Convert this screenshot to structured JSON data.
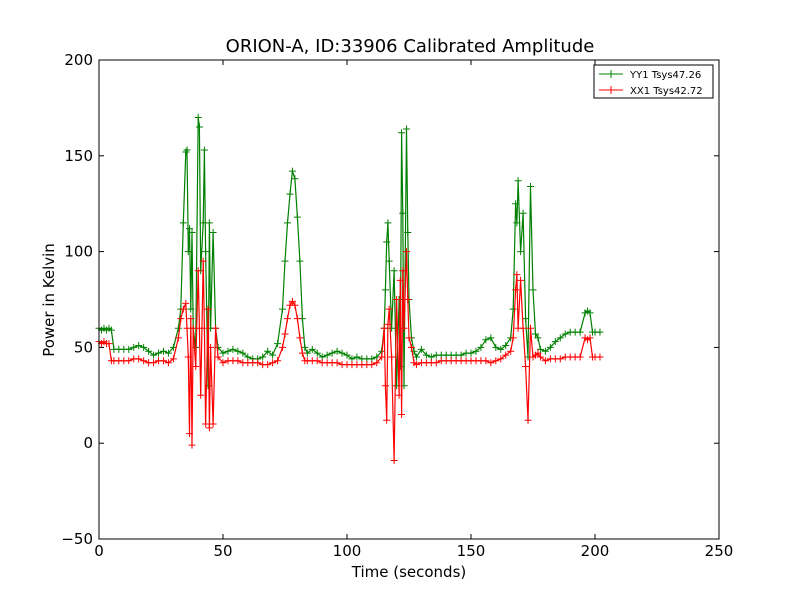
{
  "chart_data": {
    "type": "line",
    "title": "ORION-A, ID:33906 Calibrated Amplitude",
    "xlabel": "Time (seconds)",
    "ylabel": "Power in Kelvin",
    "xlim": [
      0,
      250
    ],
    "ylim": [
      -50,
      200
    ],
    "xticks": [
      0,
      50,
      100,
      150,
      200,
      250
    ],
    "yticks": [
      -50,
      0,
      50,
      100,
      150,
      200
    ],
    "grid": false,
    "legend_position": "top-right",
    "marker": "plus",
    "series": [
      {
        "name": "YY1 Tsys47.26",
        "color": "#008000",
        "points": [
          [
            0,
            60
          ],
          [
            1,
            59
          ],
          [
            2,
            60
          ],
          [
            3,
            59
          ],
          [
            4,
            60
          ],
          [
            5,
            59
          ],
          [
            6,
            49
          ],
          [
            8,
            49
          ],
          [
            10,
            49
          ],
          [
            12,
            49
          ],
          [
            14,
            50
          ],
          [
            16,
            51
          ],
          [
            18,
            50
          ],
          [
            20,
            48
          ],
          [
            22,
            46
          ],
          [
            24,
            47
          ],
          [
            26,
            48
          ],
          [
            28,
            47
          ],
          [
            30,
            50
          ],
          [
            32,
            60
          ],
          [
            33,
            70
          ],
          [
            34,
            115
          ],
          [
            35,
            152
          ],
          [
            35.5,
            153
          ],
          [
            36,
            100
          ],
          [
            36.5,
            112
          ],
          [
            37,
            70
          ],
          [
            37.5,
            110
          ],
          [
            38,
            60
          ],
          [
            39,
            50
          ],
          [
            40,
            170
          ],
          [
            40.5,
            165
          ],
          [
            41,
            90
          ],
          [
            42,
            115
          ],
          [
            42.5,
            153
          ],
          [
            43,
            100
          ],
          [
            44,
            30
          ],
          [
            44.5,
            115
          ],
          [
            45,
            60
          ],
          [
            46,
            110
          ],
          [
            47,
            60
          ],
          [
            48,
            50
          ],
          [
            50,
            47
          ],
          [
            52,
            48
          ],
          [
            54,
            49
          ],
          [
            56,
            48
          ],
          [
            58,
            47
          ],
          [
            60,
            45
          ],
          [
            62,
            44
          ],
          [
            64,
            44
          ],
          [
            66,
            45
          ],
          [
            68,
            48
          ],
          [
            70,
            46
          ],
          [
            72,
            52
          ],
          [
            74,
            70
          ],
          [
            75,
            95
          ],
          [
            76,
            115
          ],
          [
            77,
            130
          ],
          [
            78,
            142
          ],
          [
            79,
            138
          ],
          [
            80,
            118
          ],
          [
            81,
            95
          ],
          [
            82,
            65
          ],
          [
            83,
            50
          ],
          [
            84,
            47
          ],
          [
            86,
            49
          ],
          [
            88,
            47
          ],
          [
            90,
            45
          ],
          [
            92,
            46
          ],
          [
            94,
            47
          ],
          [
            96,
            48
          ],
          [
            98,
            47
          ],
          [
            100,
            46
          ],
          [
            102,
            44
          ],
          [
            104,
            45
          ],
          [
            106,
            44
          ],
          [
            108,
            44
          ],
          [
            110,
            44
          ],
          [
            112,
            45
          ],
          [
            114,
            48
          ],
          [
            115,
            60
          ],
          [
            115.5,
            80
          ],
          [
            116,
            105
          ],
          [
            116.5,
            115
          ],
          [
            117,
            95
          ],
          [
            118,
            60
          ],
          [
            119,
            90
          ],
          [
            120,
            30
          ],
          [
            121,
            75
          ],
          [
            121.5,
            40
          ],
          [
            122,
            162
          ],
          [
            122.5,
            120
          ],
          [
            123,
            30
          ],
          [
            124,
            164
          ],
          [
            124.5,
            110
          ],
          [
            125,
            75
          ],
          [
            126,
            55
          ],
          [
            127,
            48
          ],
          [
            128,
            45
          ],
          [
            130,
            49
          ],
          [
            132,
            46
          ],
          [
            134,
            45
          ],
          [
            136,
            46
          ],
          [
            138,
            46
          ],
          [
            140,
            46
          ],
          [
            142,
            46
          ],
          [
            144,
            46
          ],
          [
            146,
            46
          ],
          [
            148,
            47
          ],
          [
            150,
            47
          ],
          [
            152,
            48
          ],
          [
            154,
            50
          ],
          [
            156,
            54
          ],
          [
            158,
            55
          ],
          [
            160,
            50
          ],
          [
            162,
            49
          ],
          [
            164,
            51
          ],
          [
            166,
            55
          ],
          [
            167,
            70
          ],
          [
            168,
            125
          ],
          [
            168.5,
            115
          ],
          [
            169,
            137
          ],
          [
            170,
            100
          ],
          [
            171,
            120
          ],
          [
            172,
            65
          ],
          [
            173,
            45
          ],
          [
            174,
            134
          ],
          [
            175,
            80
          ],
          [
            176,
            57
          ],
          [
            177,
            55
          ],
          [
            178,
            49
          ],
          [
            180,
            48
          ],
          [
            182,
            50
          ],
          [
            184,
            53
          ],
          [
            186,
            55
          ],
          [
            188,
            57
          ],
          [
            190,
            58
          ],
          [
            192,
            58
          ],
          [
            194,
            58
          ],
          [
            196,
            68
          ],
          [
            197,
            69
          ],
          [
            198,
            68
          ],
          [
            199,
            58
          ],
          [
            200,
            58
          ],
          [
            202,
            58
          ]
        ]
      },
      {
        "name": "XX1 Tsys42.72",
        "color": "#ff0000",
        "points": [
          [
            0,
            53
          ],
          [
            1,
            52
          ],
          [
            2,
            53
          ],
          [
            3,
            52
          ],
          [
            4,
            52
          ],
          [
            5,
            43
          ],
          [
            6,
            43
          ],
          [
            8,
            43
          ],
          [
            10,
            43
          ],
          [
            12,
            43
          ],
          [
            14,
            44
          ],
          [
            16,
            44
          ],
          [
            18,
            43
          ],
          [
            20,
            42
          ],
          [
            22,
            42
          ],
          [
            24,
            43
          ],
          [
            26,
            43
          ],
          [
            28,
            42
          ],
          [
            30,
            44
          ],
          [
            32,
            55
          ],
          [
            33,
            65
          ],
          [
            34,
            70
          ],
          [
            35,
            73
          ],
          [
            35.5,
            60
          ],
          [
            36,
            45
          ],
          [
            36.5,
            5
          ],
          [
            37,
            65
          ],
          [
            37.5,
            -1
          ],
          [
            38,
            60
          ],
          [
            39,
            40
          ],
          [
            40,
            90
          ],
          [
            40.5,
            60
          ],
          [
            41,
            25
          ],
          [
            42,
            95
          ],
          [
            42.5,
            60
          ],
          [
            43,
            10
          ],
          [
            44,
            70
          ],
          [
            44.5,
            8
          ],
          [
            45,
            50
          ],
          [
            46,
            10
          ],
          [
            47,
            60
          ],
          [
            48,
            45
          ],
          [
            50,
            42
          ],
          [
            52,
            43
          ],
          [
            54,
            43
          ],
          [
            56,
            43
          ],
          [
            58,
            42
          ],
          [
            60,
            42
          ],
          [
            62,
            42
          ],
          [
            64,
            42
          ],
          [
            66,
            41
          ],
          [
            68,
            41
          ],
          [
            70,
            42
          ],
          [
            72,
            43
          ],
          [
            74,
            50
          ],
          [
            75,
            57
          ],
          [
            76,
            65
          ],
          [
            77,
            72
          ],
          [
            78,
            74
          ],
          [
            79,
            72
          ],
          [
            80,
            65
          ],
          [
            81,
            55
          ],
          [
            82,
            47
          ],
          [
            83,
            43
          ],
          [
            84,
            43
          ],
          [
            86,
            43
          ],
          [
            88,
            43
          ],
          [
            90,
            42
          ],
          [
            92,
            42
          ],
          [
            94,
            42
          ],
          [
            96,
            42
          ],
          [
            98,
            41
          ],
          [
            100,
            41
          ],
          [
            102,
            41
          ],
          [
            104,
            41
          ],
          [
            106,
            41
          ],
          [
            108,
            41
          ],
          [
            110,
            41
          ],
          [
            112,
            42
          ],
          [
            114,
            45
          ],
          [
            115,
            60
          ],
          [
            115.5,
            30
          ],
          [
            116,
            12
          ],
          [
            116.5,
            62
          ],
          [
            117,
            70
          ],
          [
            118,
            45
          ],
          [
            119,
            -9
          ],
          [
            120,
            75
          ],
          [
            121,
            25
          ],
          [
            121.5,
            85
          ],
          [
            122,
            15
          ],
          [
            122.5,
            90
          ],
          [
            123,
            60
          ],
          [
            124,
            100
          ],
          [
            124.5,
            75
          ],
          [
            125,
            55
          ],
          [
            126,
            50
          ],
          [
            127,
            42
          ],
          [
            128,
            41
          ],
          [
            130,
            42
          ],
          [
            132,
            42
          ],
          [
            134,
            42
          ],
          [
            136,
            42
          ],
          [
            138,
            43
          ],
          [
            140,
            43
          ],
          [
            142,
            43
          ],
          [
            144,
            43
          ],
          [
            146,
            43
          ],
          [
            148,
            43
          ],
          [
            150,
            43
          ],
          [
            152,
            43
          ],
          [
            154,
            43
          ],
          [
            156,
            43
          ],
          [
            158,
            42
          ],
          [
            160,
            43
          ],
          [
            162,
            44
          ],
          [
            164,
            46
          ],
          [
            166,
            48
          ],
          [
            167,
            55
          ],
          [
            168,
            80
          ],
          [
            168.5,
            88
          ],
          [
            169,
            60
          ],
          [
            170,
            85
          ],
          [
            171,
            60
          ],
          [
            172,
            40
          ],
          [
            173,
            12
          ],
          [
            174,
            60
          ],
          [
            175,
            45
          ],
          [
            176,
            46
          ],
          [
            177,
            47
          ],
          [
            178,
            45
          ],
          [
            180,
            43
          ],
          [
            182,
            44
          ],
          [
            184,
            44
          ],
          [
            186,
            44
          ],
          [
            188,
            45
          ],
          [
            190,
            45
          ],
          [
            192,
            45
          ],
          [
            194,
            45
          ],
          [
            196,
            55
          ],
          [
            197,
            54
          ],
          [
            198,
            55
          ],
          [
            199,
            45
          ],
          [
            200,
            45
          ],
          [
            202,
            45
          ]
        ]
      }
    ]
  }
}
